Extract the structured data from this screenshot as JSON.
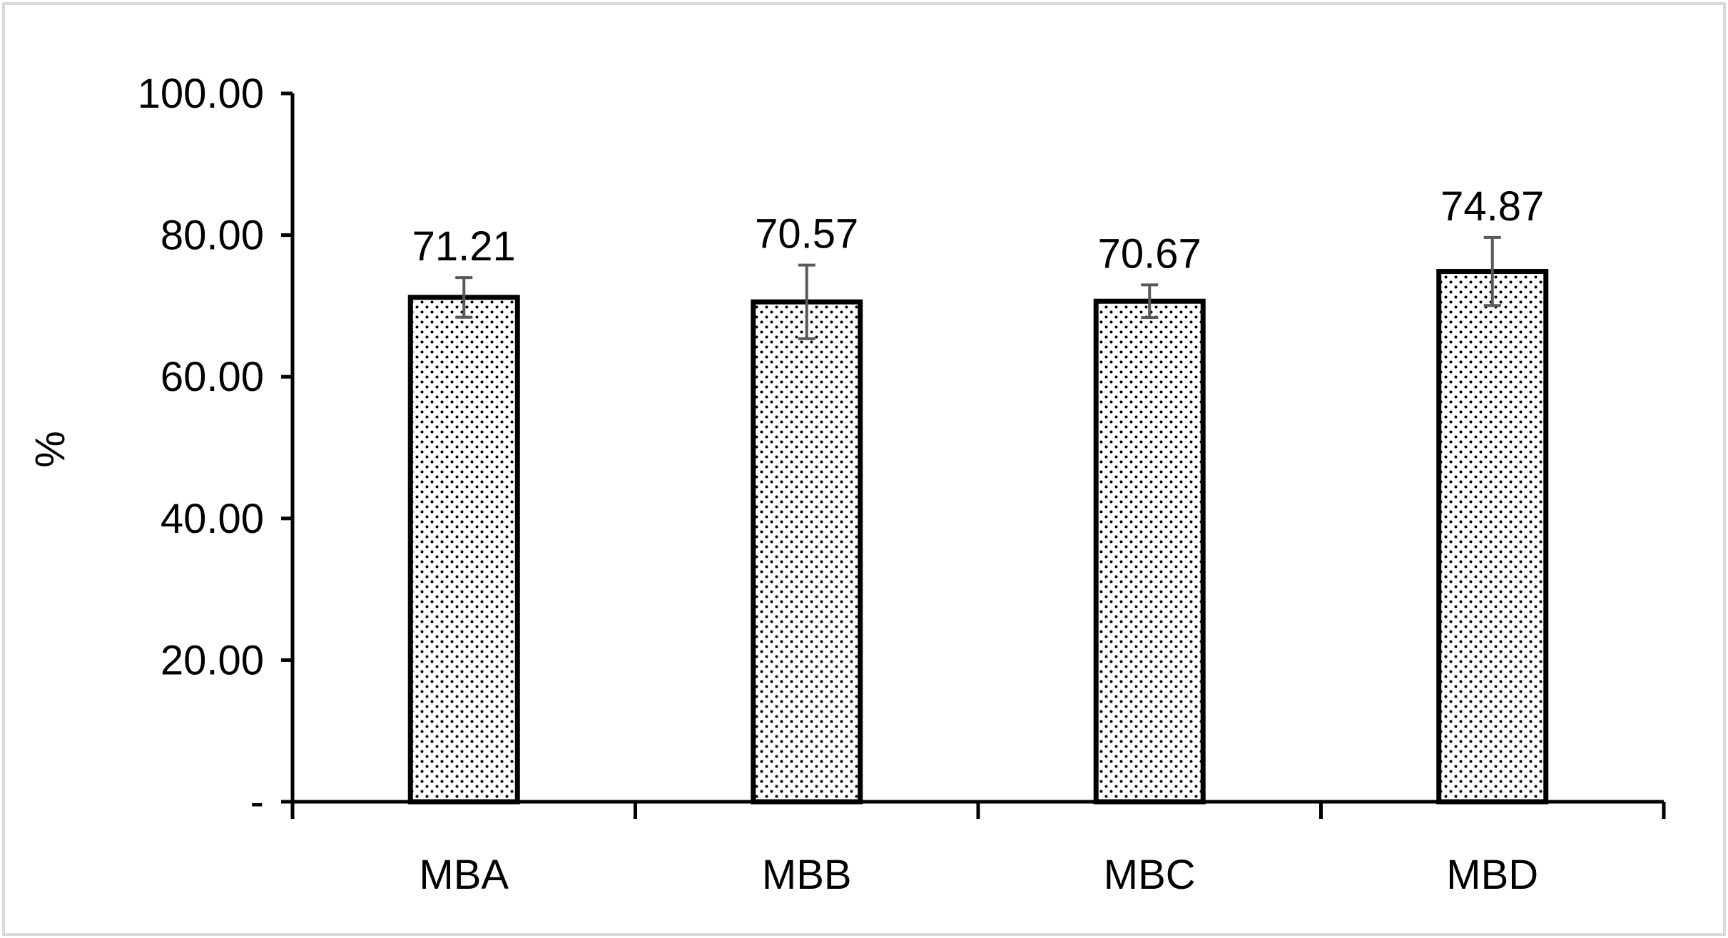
{
  "chart_data": {
    "type": "bar",
    "categories": [
      "MBA",
      "MBB",
      "MBC",
      "MBD"
    ],
    "values": [
      71.21,
      70.57,
      70.67,
      74.87
    ],
    "value_labels": [
      "71.21",
      "70.57",
      "70.67",
      "74.87"
    ],
    "error": [
      2.8,
      5.2,
      2.3,
      4.8
    ],
    "ylabel": "%",
    "xlabel": "",
    "title": "",
    "ylim": [
      0,
      100
    ],
    "yticks": [
      0,
      20,
      40,
      60,
      80,
      100
    ],
    "ytick_labels": [
      "-",
      "20.00",
      "40.00",
      "60.00",
      "80.00",
      "100.00"
    ],
    "grid": false,
    "legend": "none",
    "bar_fill": "dotted",
    "colors": {
      "bar_outline": "#000000",
      "bar_fill_background": "#ffffff",
      "bar_fill_dots": "#000000",
      "error_bar": "#595959",
      "axis": "#000000",
      "frame_border": "#d9d9d9"
    }
  }
}
